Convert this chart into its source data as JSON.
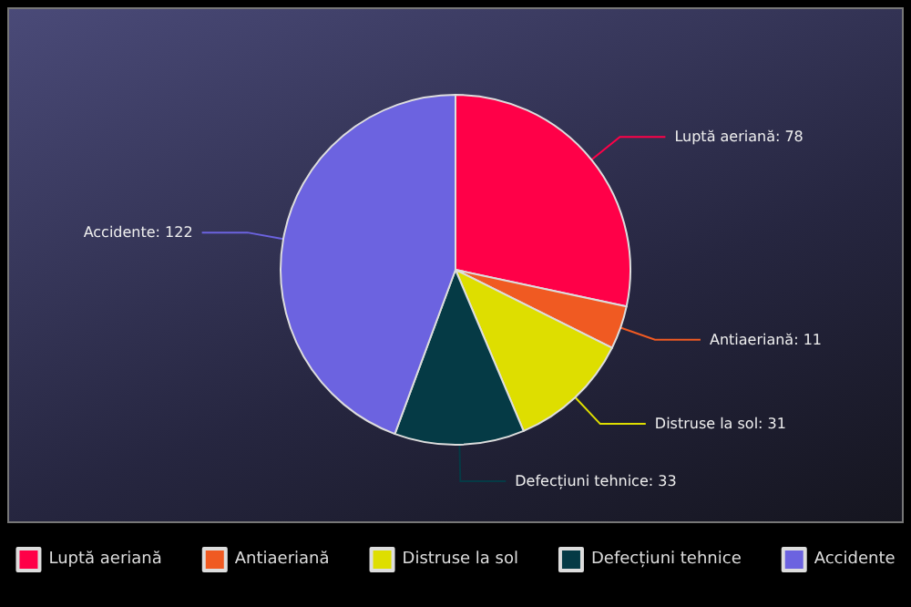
{
  "chart_data": {
    "type": "pie",
    "categories": [
      "Luptă aeriană",
      "Antiaeriană",
      "Distruse la sol",
      "Defecțiuni tehnice",
      "Accidente"
    ],
    "values": [
      78,
      11,
      31,
      33,
      122
    ],
    "value_labels": [
      "Luptă aeriană: 78",
      "Antiaeriană: 11",
      "Distruse la sol: 31",
      "Defecțiuni tehnice: 33",
      "Accidente: 122"
    ],
    "colors": [
      "#ff0048",
      "#f05a22",
      "#dede00",
      "#053a45",
      "#6c63e0"
    ],
    "legend": "bottom"
  }
}
